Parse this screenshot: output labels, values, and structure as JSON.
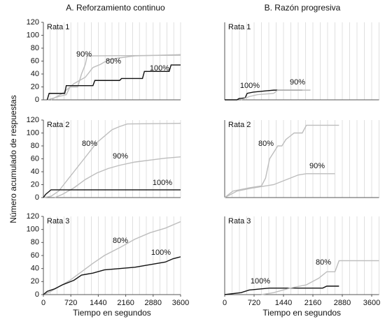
{
  "column_titles": [
    "A. Reforzamiento continuo",
    "B. Razón progresiva"
  ],
  "y_axis_label": "Número acumulado de respuestas",
  "chart_data": [
    {
      "type": "line",
      "title": "Rata 1",
      "xlim": [
        0,
        3600
      ],
      "ylim": [
        0,
        120
      ],
      "yticks": [
        0,
        20,
        40,
        60,
        80,
        100,
        120
      ],
      "xgrid": [
        180,
        360,
        540,
        720,
        900,
        1080,
        1260,
        1440,
        1620,
        1800,
        1980,
        2160,
        2340,
        2520,
        2700,
        2880,
        3060,
        3240,
        3420,
        3600
      ],
      "series": [
        {
          "name": "90%",
          "color": "#bdbdbd",
          "x": [
            100,
            400,
            600,
            700,
            900,
            1000,
            1100,
            1150,
            3600
          ],
          "values": [
            0,
            5,
            8,
            20,
            20,
            40,
            55,
            68,
            69
          ]
        },
        {
          "name": "80%",
          "color": "#bdbdbd",
          "x": [
            200,
            500,
            800,
            1100,
            1300,
            1500,
            1700,
            2000,
            2400,
            3600
          ],
          "values": [
            0,
            10,
            25,
            35,
            50,
            55,
            62,
            65,
            68,
            70
          ]
        },
        {
          "name": "100%",
          "color": "#111111",
          "x": [
            100,
            150,
            560,
            600,
            1300,
            1350,
            2000,
            2050,
            2600,
            2650,
            3300,
            3350,
            3600
          ],
          "values": [
            0,
            10,
            10,
            22,
            22,
            30,
            30,
            33,
            33,
            44,
            44,
            54,
            54
          ]
        }
      ]
    },
    {
      "type": "line",
      "title": "Rata 1",
      "xlim": [
        0,
        3780
      ],
      "ylim": [
        0,
        120
      ],
      "xgrid": [
        180,
        360,
        540,
        720,
        900,
        1080,
        1260,
        1440,
        1620,
        1800,
        1980,
        2160,
        2340,
        2520,
        2700,
        2880,
        3060,
        3240,
        3420,
        3600,
        3780
      ],
      "series": [
        {
          "name": "100%",
          "color": "#111111",
          "x": [
            0,
            300,
            350,
            500,
            550,
            700,
            1200,
            1900
          ],
          "values": [
            0,
            0,
            2,
            3,
            10,
            12,
            15,
            15
          ]
        },
        {
          "name": "90%",
          "color": "#bdbdbd",
          "x": [
            400,
            600,
            800,
            1200,
            1300,
            2100
          ],
          "values": [
            0,
            5,
            8,
            10,
            15,
            15
          ]
        }
      ]
    },
    {
      "type": "line",
      "title": "Rata 2",
      "xlim": [
        0,
        3600
      ],
      "ylim": [
        0,
        120
      ],
      "yticks": [
        0,
        20,
        40,
        60,
        80,
        100,
        120
      ],
      "xgrid": [
        180,
        360,
        540,
        720,
        900,
        1080,
        1260,
        1440,
        1620,
        1800,
        1980,
        2160,
        2340,
        2520,
        2700,
        2880,
        3060,
        3240,
        3420,
        3600
      ],
      "series": [
        {
          "name": "80%",
          "color": "#bdbdbd",
          "x": [
            0,
            200,
            400,
            600,
            800,
            1000,
            1200,
            1400,
            1600,
            1800,
            2000,
            2200,
            3600
          ],
          "values": [
            0,
            2,
            10,
            25,
            40,
            55,
            70,
            85,
            95,
            105,
            110,
            114,
            115
          ]
        },
        {
          "name": "90%",
          "color": "#bdbdbd",
          "x": [
            300,
            500,
            800,
            1100,
            1400,
            1700,
            2000,
            2400,
            2800,
            3200,
            3600
          ],
          "values": [
            0,
            5,
            15,
            28,
            38,
            45,
            50,
            55,
            58,
            61,
            63
          ]
        },
        {
          "name": "100%",
          "color": "#111111",
          "x": [
            0,
            60,
            120,
            200,
            3600
          ],
          "values": [
            0,
            5,
            8,
            12,
            12
          ]
        }
      ]
    },
    {
      "type": "line",
      "title": "Rata 2",
      "xlim": [
        0,
        3780
      ],
      "ylim": [
        0,
        120
      ],
      "xgrid": [
        180,
        360,
        540,
        720,
        900,
        1080,
        1260,
        1440,
        1620,
        1800,
        1980,
        2160,
        2340,
        2520,
        2700,
        2880,
        3060,
        3240,
        3420,
        3600,
        3780
      ],
      "series": [
        {
          "name": "80%",
          "color": "#bdbdbd",
          "x": [
            0,
            200,
            600,
            900,
            1000,
            1100,
            1200,
            1300,
            1400,
            1500,
            1600,
            1700,
            1900,
            2000,
            2800
          ],
          "values": [
            0,
            10,
            15,
            18,
            30,
            60,
            70,
            80,
            80,
            90,
            95,
            100,
            100,
            112,
            112
          ]
        },
        {
          "name": "90%",
          "color": "#bdbdbd",
          "x": [
            0,
            300,
            700,
            1000,
            1200,
            1400,
            1600,
            1800,
            2000,
            2700
          ],
          "values": [
            0,
            10,
            15,
            18,
            20,
            25,
            30,
            35,
            37,
            37
          ]
        }
      ]
    },
    {
      "type": "line",
      "title": "Rata 3",
      "xlim": [
        0,
        3600
      ],
      "ylim": [
        0,
        120
      ],
      "yticks": [
        0,
        20,
        40,
        60,
        80,
        100,
        120
      ],
      "xticks": [
        0,
        720,
        1440,
        2160,
        2880,
        3600
      ],
      "xlabel": "Tiempo en segundos",
      "xgrid": [
        180,
        360,
        540,
        720,
        900,
        1080,
        1260,
        1440,
        1620,
        1800,
        1980,
        2160,
        2340,
        2520,
        2700,
        2880,
        3060,
        3240,
        3420,
        3600
      ],
      "series": [
        {
          "name": "80%",
          "color": "#bdbdbd",
          "x": [
            0,
            200,
            400,
            700,
            1000,
            1300,
            1600,
            2000,
            2400,
            2800,
            3200,
            3600
          ],
          "values": [
            0,
            5,
            12,
            22,
            35,
            48,
            60,
            72,
            85,
            95,
            102,
            112
          ]
        },
        {
          "name": "100%",
          "color": "#111111",
          "x": [
            0,
            100,
            300,
            500,
            800,
            1000,
            1300,
            1600,
            2000,
            2400,
            2800,
            3200,
            3400,
            3600
          ],
          "values": [
            0,
            5,
            9,
            15,
            22,
            30,
            33,
            38,
            40,
            42,
            46,
            50,
            55,
            58
          ]
        }
      ]
    },
    {
      "type": "line",
      "title": "Rata 3",
      "xlim": [
        0,
        3780
      ],
      "ylim": [
        0,
        120
      ],
      "xticks": [
        0,
        720,
        1440,
        2160,
        2880,
        3600
      ],
      "xlabel": "Tiempo en segundos",
      "xgrid": [
        180,
        360,
        540,
        720,
        900,
        1080,
        1260,
        1440,
        1620,
        1800,
        1980,
        2160,
        2340,
        2520,
        2700,
        2880,
        3060,
        3240,
        3420,
        3600,
        3780
      ],
      "series": [
        {
          "name": "100%",
          "color": "#111111",
          "x": [
            0,
            400,
            600,
            1100,
            2400,
            2500,
            2800
          ],
          "values": [
            0,
            3,
            7,
            10,
            10,
            13,
            13
          ]
        },
        {
          "name": "80%",
          "color": "#bdbdbd",
          "x": [
            900,
            1200,
            1600,
            2000,
            2300,
            2500,
            2700,
            2800,
            3780
          ],
          "values": [
            0,
            3,
            10,
            15,
            25,
            35,
            35,
            52,
            52
          ]
        }
      ]
    }
  ]
}
